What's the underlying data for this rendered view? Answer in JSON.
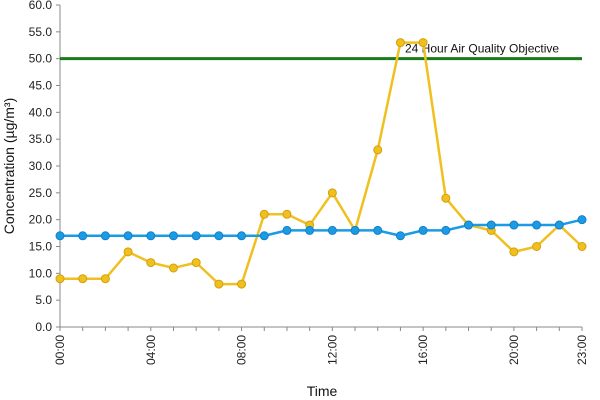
{
  "chart_data": {
    "type": "line",
    "title": "",
    "xlabel": "Time",
    "ylabel": "Concentration (µg/m³)",
    "ylim": [
      0,
      60
    ],
    "y_ticks": [
      "0.0",
      "5.0",
      "10.0",
      "15.0",
      "20.0",
      "25.0",
      "30.0",
      "35.0",
      "40.0",
      "45.0",
      "50.0",
      "55.0",
      "60.0"
    ],
    "x": [
      "00:00",
      "01:00",
      "02:00",
      "03:00",
      "04:00",
      "05:00",
      "06:00",
      "07:00",
      "08:00",
      "09:00",
      "10:00",
      "11:00",
      "12:00",
      "13:00",
      "14:00",
      "15:00",
      "16:00",
      "17:00",
      "18:00",
      "19:00",
      "20:00",
      "21:00",
      "22:00",
      "23:00"
    ],
    "x_tick_labels": [
      "00:00",
      "04:00",
      "08:00",
      "12:00",
      "16:00",
      "20:00",
      "23:00"
    ],
    "grid": false,
    "series": [
      {
        "color": "#f0c020",
        "values": [
          9,
          9,
          9,
          14,
          12,
          11,
          12,
          8,
          8,
          21,
          21,
          19,
          25,
          18,
          33,
          53,
          53,
          24,
          19,
          18,
          14,
          15,
          19,
          15
        ]
      },
      {
        "color": "#1a9be6",
        "values": [
          17,
          17,
          17,
          17,
          17,
          17,
          17,
          17,
          17,
          17,
          18,
          18,
          18,
          18,
          18,
          17,
          18,
          18,
          19,
          19,
          19,
          19,
          19,
          20
        ]
      }
    ],
    "reference_line": {
      "value": 50,
      "label": "24 Hour Air Quality Objective",
      "color": "#1a7a1a"
    }
  }
}
